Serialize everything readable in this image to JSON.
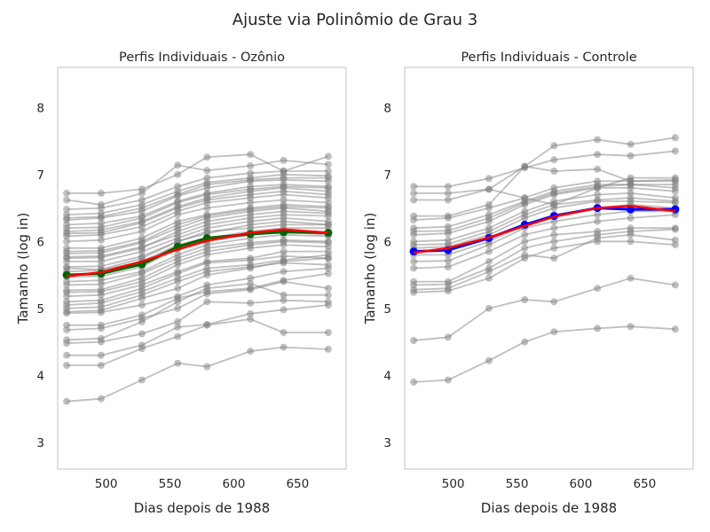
{
  "suptitle": "Ajuste via Polinômio de Grau 3",
  "chart_data": [
    {
      "type": "line",
      "title": "Perfis Individuais - Ozônio",
      "xlabel": "Dias depois de 1988",
      "ylabel": "Tamanho (log in)",
      "xlim": [
        462,
        688
      ],
      "ylim": [
        2.6,
        8.6
      ],
      "xticks": [
        500,
        550,
        600,
        650
      ],
      "yticks": [
        3,
        4,
        5,
        6,
        7,
        8
      ],
      "grid": false,
      "x": [
        469,
        496,
        528,
        556,
        579,
        613,
        639,
        674
      ],
      "individual_color": "#808080",
      "mean_color": "#006400",
      "fit_color": "#ff0000",
      "mean": [
        5.5,
        5.52,
        5.66,
        5.92,
        6.05,
        6.11,
        6.14,
        6.13
      ],
      "fit": [
        5.48,
        5.54,
        5.7,
        5.88,
        6.01,
        6.13,
        6.18,
        6.13
      ],
      "individuals": [
        [
          3.61,
          3.65,
          3.93,
          4.18,
          4.13,
          4.36,
          4.42,
          4.39
        ],
        [
          4.15,
          4.15,
          4.4,
          4.58,
          4.75,
          4.84,
          4.64,
          4.64
        ],
        [
          4.3,
          4.3,
          4.45,
          4.72,
          4.76,
          4.92,
          4.98,
          5.05
        ],
        [
          4.48,
          4.5,
          4.62,
          4.8,
          5.1,
          5.08,
          5.12,
          5.1
        ],
        [
          4.53,
          4.55,
          4.8,
          5.1,
          5.3,
          5.37,
          5.2,
          5.2
        ],
        [
          4.68,
          4.7,
          4.85,
          5.0,
          5.22,
          5.28,
          5.4,
          5.3
        ],
        [
          4.75,
          4.75,
          4.9,
          5.15,
          5.25,
          5.3,
          5.42,
          5.52
        ],
        [
          4.93,
          4.94,
          5.05,
          5.18,
          5.35,
          5.45,
          5.55,
          5.6
        ],
        [
          4.95,
          4.97,
          5.15,
          5.3,
          5.5,
          5.6,
          5.7,
          5.75
        ],
        [
          5.05,
          5.08,
          5.25,
          5.45,
          5.6,
          5.65,
          5.72,
          5.8
        ],
        [
          5.18,
          5.2,
          5.35,
          5.55,
          5.7,
          5.75,
          5.85,
          5.85
        ],
        [
          5.24,
          5.25,
          5.4,
          5.65,
          5.8,
          5.9,
          5.95,
          5.92
        ],
        [
          5.27,
          5.28,
          5.45,
          5.7,
          5.85,
          5.95,
          6.0,
          5.98
        ],
        [
          5.4,
          5.42,
          5.55,
          5.8,
          5.95,
          6.05,
          6.1,
          6.08
        ],
        [
          5.47,
          5.48,
          5.62,
          5.9,
          6.0,
          6.1,
          6.15,
          6.12
        ],
        [
          5.55,
          5.57,
          5.7,
          5.95,
          6.05,
          6.15,
          6.2,
          6.2
        ],
        [
          5.62,
          5.63,
          5.78,
          6.0,
          6.15,
          6.2,
          6.25,
          6.25
        ],
        [
          5.7,
          5.7,
          5.85,
          6.05,
          6.2,
          6.3,
          6.35,
          6.3
        ],
        [
          5.77,
          5.78,
          5.92,
          6.1,
          6.25,
          6.35,
          6.4,
          6.38
        ],
        [
          5.82,
          5.83,
          5.98,
          6.2,
          6.35,
          6.45,
          6.5,
          6.45
        ],
        [
          5.9,
          5.9,
          6.05,
          6.3,
          6.4,
          6.5,
          6.55,
          6.52
        ],
        [
          6.0,
          6.02,
          6.15,
          6.4,
          6.5,
          6.58,
          6.62,
          6.58
        ],
        [
          6.08,
          6.1,
          6.22,
          6.45,
          6.58,
          6.65,
          6.7,
          6.65
        ],
        [
          6.15,
          6.17,
          6.3,
          6.52,
          6.65,
          6.75,
          6.8,
          6.75
        ],
        [
          6.25,
          6.27,
          6.38,
          6.6,
          6.72,
          6.82,
          6.85,
          6.82
        ],
        [
          6.32,
          6.35,
          6.45,
          6.68,
          6.8,
          6.9,
          6.92,
          6.9
        ],
        [
          6.4,
          6.42,
          6.55,
          6.75,
          6.88,
          6.95,
          7.0,
          6.98
        ],
        [
          6.48,
          6.5,
          6.62,
          6.82,
          6.95,
          7.02,
          7.05,
          7.05
        ],
        [
          6.62,
          6.55,
          6.72,
          7.14,
          7.06,
          7.13,
          7.21,
          7.15
        ],
        [
          6.72,
          6.72,
          6.78,
          7.0,
          7.26,
          7.3,
          7.05,
          7.27
        ],
        [
          5.1,
          5.12,
          5.3,
          5.52,
          5.68,
          5.72,
          5.78,
          5.75
        ],
        [
          5.35,
          5.36,
          5.52,
          5.75,
          5.9,
          5.98,
          6.02,
          6.0
        ],
        [
          5.6,
          5.58,
          5.75,
          6.0,
          6.12,
          6.25,
          6.3,
          6.25
        ],
        [
          5.85,
          5.86,
          6.0,
          6.25,
          6.38,
          6.48,
          6.52,
          6.5
        ],
        [
          6.12,
          6.13,
          6.28,
          6.5,
          6.62,
          6.7,
          6.75,
          6.7
        ],
        [
          6.35,
          6.37,
          6.5,
          6.7,
          6.85,
          6.92,
          6.95,
          6.95
        ],
        [
          5.0,
          5.02,
          5.2,
          5.4,
          5.55,
          5.62,
          5.68,
          5.65
        ],
        [
          5.75,
          5.76,
          5.9,
          6.15,
          6.3,
          6.4,
          6.45,
          6.42
        ],
        [
          6.2,
          6.21,
          6.35,
          6.58,
          6.7,
          6.78,
          6.82,
          6.8
        ],
        [
          5.5,
          5.51,
          5.65,
          5.88,
          6.02,
          6.1,
          6.15,
          6.1
        ]
      ]
    },
    {
      "type": "line",
      "title": "Perfis Individuais - Controle",
      "xlabel": "Dias depois de 1988",
      "ylabel": "Tamanho (log in)",
      "xlim": [
        462,
        688
      ],
      "ylim": [
        2.6,
        8.6
      ],
      "xticks": [
        500,
        550,
        600,
        650
      ],
      "yticks": [
        3,
        4,
        5,
        6,
        7,
        8
      ],
      "grid": false,
      "x": [
        469,
        496,
        528,
        556,
        579,
        613,
        639,
        674
      ],
      "individual_color": "#808080",
      "mean_color": "#0000ff",
      "fit_color": "#ff0000",
      "mean": [
        5.85,
        5.87,
        6.05,
        6.25,
        6.38,
        6.5,
        6.48,
        6.48
      ],
      "fit": [
        5.83,
        5.9,
        6.06,
        6.23,
        6.37,
        6.5,
        6.53,
        6.45
      ],
      "individuals": [
        [
          3.9,
          3.93,
          4.22,
          4.5,
          4.65,
          4.7,
          4.73,
          4.69
        ],
        [
          4.52,
          4.57,
          5.0,
          5.13,
          5.1,
          5.3,
          5.45,
          5.35
        ],
        [
          5.24,
          5.26,
          5.45,
          5.75,
          5.9,
          6.0,
          6.0,
          5.95
        ],
        [
          5.28,
          5.3,
          5.55,
          5.8,
          5.75,
          6.05,
          6.1,
          6.02
        ],
        [
          5.35,
          5.36,
          5.6,
          5.9,
          6.0,
          6.1,
          6.15,
          6.18
        ],
        [
          5.4,
          5.4,
          5.7,
          6.0,
          6.1,
          6.15,
          6.2,
          6.2
        ],
        [
          5.6,
          5.62,
          5.85,
          6.1,
          6.2,
          6.3,
          6.35,
          6.4
        ],
        [
          5.7,
          5.71,
          5.95,
          6.2,
          6.3,
          6.4,
          6.45,
          6.45
        ],
        [
          5.8,
          5.8,
          6.0,
          6.25,
          6.4,
          6.5,
          6.55,
          6.5
        ],
        [
          5.9,
          5.92,
          6.1,
          6.35,
          6.5,
          6.6,
          6.6,
          6.58
        ],
        [
          6.0,
          6.02,
          6.2,
          6.45,
          6.6,
          6.7,
          6.72,
          6.65
        ],
        [
          6.1,
          6.12,
          6.3,
          6.55,
          6.7,
          6.8,
          6.8,
          6.75
        ],
        [
          6.2,
          6.22,
          6.4,
          6.6,
          6.75,
          6.85,
          6.85,
          6.85
        ],
        [
          6.32,
          6.35,
          6.5,
          6.65,
          6.8,
          6.9,
          6.9,
          6.9
        ],
        [
          6.62,
          6.62,
          6.78,
          6.65,
          6.55,
          6.8,
          6.95,
          6.95
        ],
        [
          6.72,
          6.72,
          6.78,
          7.12,
          7.43,
          7.52,
          7.45,
          7.55
        ],
        [
          6.82,
          6.82,
          6.94,
          7.1,
          7.22,
          7.3,
          7.28,
          7.35
        ],
        [
          5.95,
          5.96,
          6.15,
          6.4,
          6.55,
          6.62,
          6.65,
          6.6
        ],
        [
          6.15,
          6.16,
          6.35,
          6.58,
          6.72,
          6.82,
          6.85,
          6.8
        ],
        [
          6.38,
          6.38,
          6.55,
          7.12,
          7.05,
          7.08,
          6.9,
          6.92
        ]
      ]
    }
  ]
}
